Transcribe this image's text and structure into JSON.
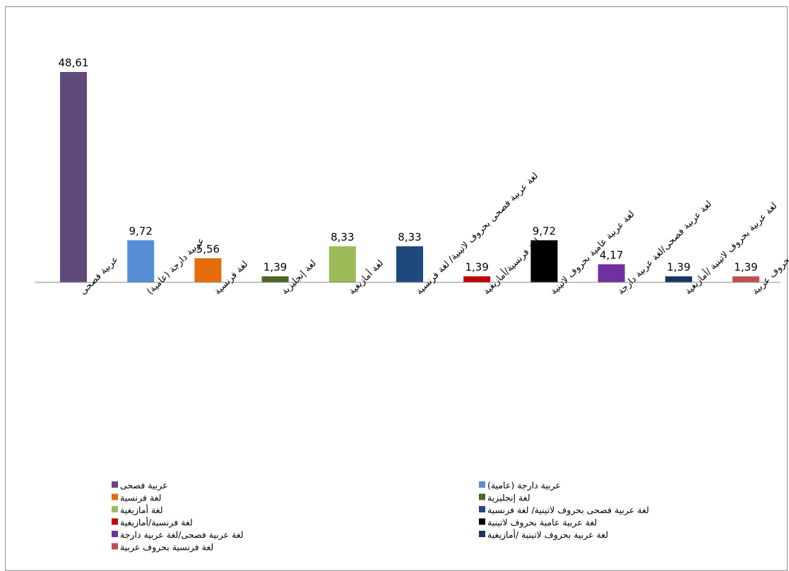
{
  "chart_data": {
    "type": "bar",
    "categories": [
      "عربية فصحى",
      "عربية دارجة (عامية)",
      "لغة فرنسية",
      "لغة إنجليزية",
      "لغة أمازيغية",
      "لغة عربية فصحى بحروف لاتينية/ لغة فرنسية",
      "لغة فرنسية/أمازيغية",
      "لغة عربية عامية بحروف لاتينية",
      "لغة عربية فصحى/لغة عربية دارجة",
      "لغة عربية بحروف لاتينية /أمازيغية",
      "لغة فرنسية بحروف عربية"
    ],
    "values": [
      48.61,
      9.72,
      5.56,
      1.39,
      8.33,
      8.33,
      1.39,
      9.72,
      4.17,
      1.39,
      1.39
    ],
    "value_labels": [
      "48,61",
      "9,72",
      "5,56",
      "1,39",
      "8,33",
      "8,33",
      "1,39",
      "9,72",
      "4,17",
      "1,39",
      "1,39"
    ],
    "colors": [
      "#604a7b",
      "#558ed5",
      "#e46c0a",
      "#4f6228",
      "#9bbb59",
      "#1f497d",
      "#c00000",
      "#000000",
      "#7030a0",
      "#17375e",
      "#c0504d"
    ],
    "legend": [
      "عربية فصحى",
      "عربية دارجة   (عامية)",
      "لغة فرنسية",
      "لغة إنجليزية",
      "لغة أمازيغية",
      "لغة عربية فصحى بحروف لاتينية/ لغة فرنسية",
      "لغة فرنسية/أمازيغية",
      "لغة عربية عامية بحروف لاتينية",
      "لغة عربية فصحى/لغة عربية دارجة",
      "لغة عربية بحروف لاتينية /أمازيغية",
      "لغة فرنسية بحروف عربية"
    ],
    "ylim": [
      0,
      50
    ],
    "grid": false,
    "legend_position": "bottom"
  }
}
